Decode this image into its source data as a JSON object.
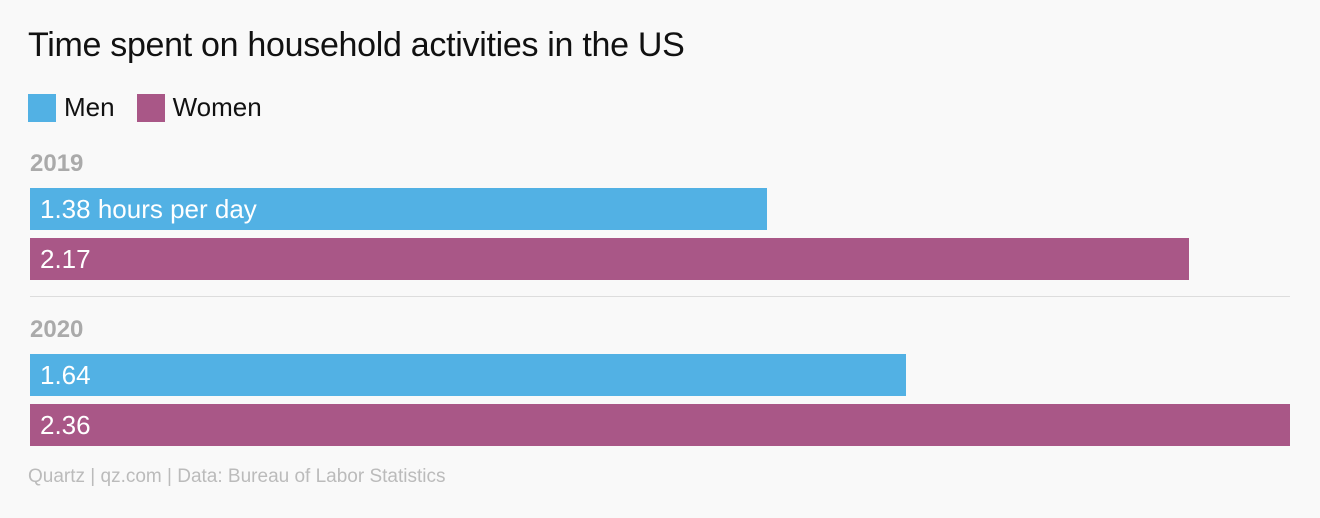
{
  "chart_data": {
    "type": "bar",
    "orientation": "horizontal",
    "title": "Time spent on household activities in the US",
    "categories": [
      "2019",
      "2020"
    ],
    "series": [
      {
        "name": "Men",
        "color": "#52b1e4",
        "values": [
          1.38,
          1.64
        ],
        "labels": [
          "1.38 hours per day",
          "1.64"
        ]
      },
      {
        "name": "Women",
        "color": "#a95787",
        "values": [
          2.17,
          2.36
        ],
        "labels": [
          "2.17",
          "2.36"
        ]
      }
    ],
    "xlim": [
      0,
      2.36
    ],
    "legend_position": "top-left",
    "grid": false
  },
  "source": "Quartz | qz.com | Data: Bureau of Labor Statistics"
}
